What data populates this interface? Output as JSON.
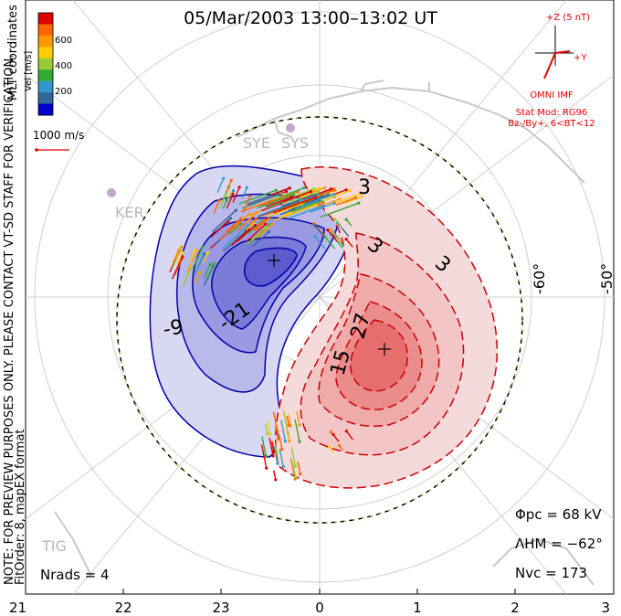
{
  "title": "05/Mar/2003 13:00–13:02 UT",
  "colorbar": {
    "label": "Vel [m/s]",
    "ticks": [
      "600",
      "400",
      "200"
    ],
    "colors": [
      "#e00000",
      "#ff6600",
      "#ff9900",
      "#ffcc00",
      "#99cc33",
      "#33aa33",
      "#3399cc",
      "#336699",
      "#0000cc"
    ]
  },
  "coord_label": "MLT coordinates",
  "vector_scale_label": "1000 m/s",
  "side_note": "NOTE: FOR PREVIEW PURPOSES ONLY. PLEASE CONTACT VT-SD STAFF FOR VERIFICATION.",
  "fit_note": "FitOrder: 8, mapEX format",
  "imf": {
    "z_label": "+Z (5 nT)",
    "y_label": "+Y",
    "source": "OMNI IMF",
    "model_line1": "Stat Mod: RG96",
    "model_line2": "Bz-/By+, 6<BT<12"
  },
  "stations": [
    "SYE",
    "SYS",
    "KER",
    "TIG"
  ],
  "latitude_labels": [
    "-60°",
    "-50°"
  ],
  "contours": {
    "negative": [
      "-9",
      "-21"
    ],
    "positive": [
      "3",
      "3",
      "3",
      "15",
      "27"
    ]
  },
  "stats": {
    "phi_pc": "Φpc  =  68 kV",
    "lambda_hm": "ΛHM  =  −62°",
    "n_vc": "Nvc  =  173",
    "n_rads": "Nrads  =  4"
  },
  "mlt_ticks": [
    "21",
    "22",
    "23",
    "0",
    "1",
    "2",
    "3"
  ],
  "colors": {
    "negative_line": "#0000aa",
    "positive_line": "#cc0000",
    "boundary": "#000000",
    "land": "#c8c8c8"
  }
}
